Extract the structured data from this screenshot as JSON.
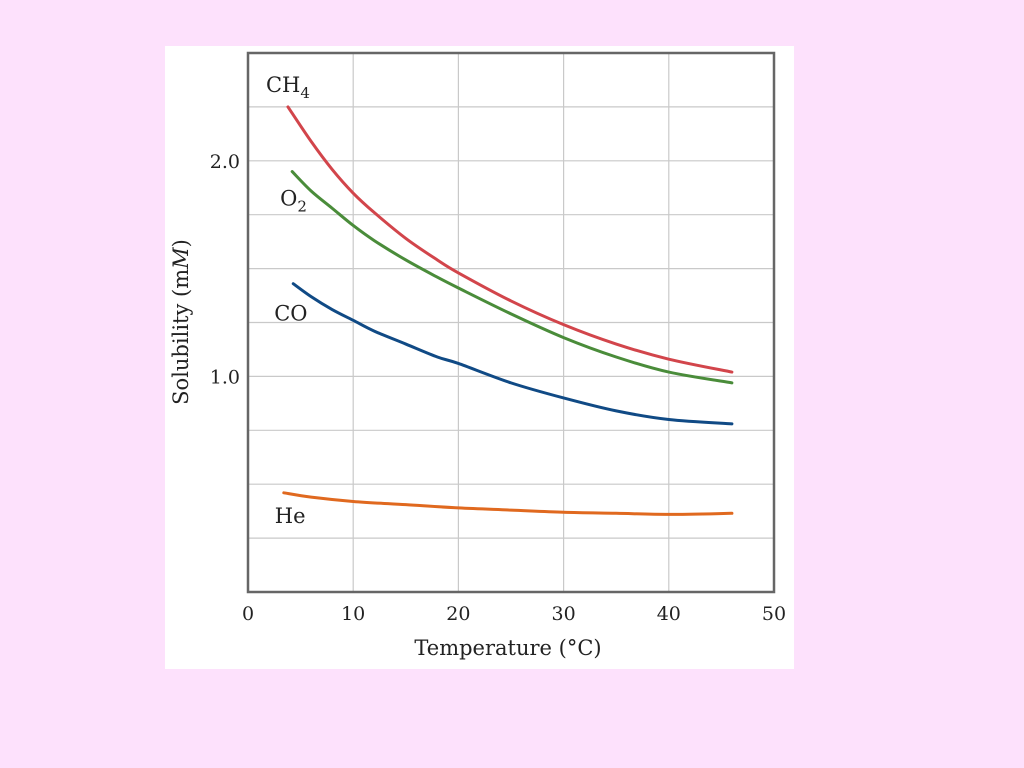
{
  "chart_data": {
    "type": "line",
    "title": "",
    "xlabel": "Temperature (°C)",
    "ylabel_prefix": "Solubility (m",
    "ylabel_italic": "M",
    "ylabel_suffix": ")",
    "xlim": [
      0,
      50
    ],
    "ylim": [
      0,
      2.5
    ],
    "xticks": [
      0,
      10,
      20,
      30,
      40,
      50
    ],
    "yticks": [
      1.0,
      2.0
    ],
    "ytick_labels": [
      "1.0",
      "2.0"
    ],
    "grid": true,
    "series": [
      {
        "name": "CH",
        "name_sub": "4",
        "color": "#d2454b",
        "x": [
          3.8,
          6,
          8,
          10,
          12,
          15,
          18,
          20,
          25,
          30,
          35,
          40,
          46
        ],
        "y": [
          2.25,
          2.09,
          1.96,
          1.85,
          1.76,
          1.64,
          1.54,
          1.48,
          1.35,
          1.24,
          1.15,
          1.08,
          1.02
        ]
      },
      {
        "name": "O",
        "name_sub": "2",
        "color": "#4a8c3a",
        "x": [
          4.2,
          6,
          8,
          10,
          12,
          15,
          18,
          20,
          25,
          30,
          35,
          40,
          46
        ],
        "y": [
          1.95,
          1.86,
          1.78,
          1.7,
          1.63,
          1.54,
          1.46,
          1.41,
          1.29,
          1.18,
          1.09,
          1.02,
          0.97
        ]
      },
      {
        "name": "CO",
        "name_sub": "",
        "color": "#104a85",
        "x": [
          4.3,
          6,
          8,
          10,
          12,
          15,
          18,
          20,
          25,
          30,
          35,
          40,
          46
        ],
        "y": [
          1.43,
          1.37,
          1.31,
          1.26,
          1.21,
          1.15,
          1.09,
          1.06,
          0.97,
          0.9,
          0.84,
          0.8,
          0.78
        ]
      },
      {
        "name": "He",
        "name_sub": "",
        "color": "#e0691f",
        "x": [
          3.4,
          6,
          10,
          15,
          20,
          25,
          30,
          35,
          40,
          46
        ],
        "y": [
          0.46,
          0.44,
          0.42,
          0.405,
          0.39,
          0.38,
          0.37,
          0.365,
          0.36,
          0.365
        ]
      }
    ]
  }
}
